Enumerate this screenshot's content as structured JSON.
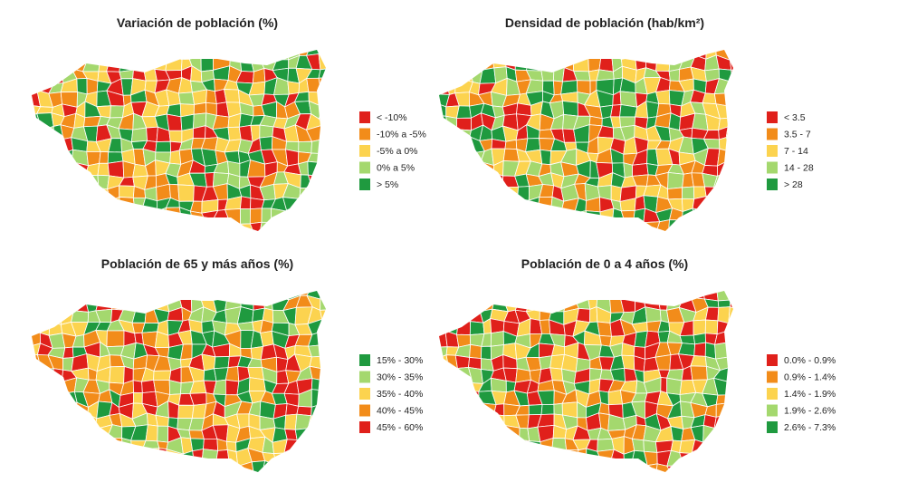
{
  "maps": [
    {
      "title": "Variación de población (%)",
      "legend": [
        {
          "label": "< -10%",
          "color": "#e0201b"
        },
        {
          "label": "-10% a -5%",
          "color": "#f28c1a"
        },
        {
          "label": "-5% a 0%",
          "color": "#fcd34f"
        },
        {
          "label": "0% a 5%",
          "color": "#a4d86e"
        },
        {
          "label": "> 5%",
          "color": "#1f9a3f"
        }
      ]
    },
    {
      "title": "Densidad de población (hab/km²)",
      "legend": [
        {
          "label": "< 3.5",
          "color": "#e0201b"
        },
        {
          "label": "3.5 - 7",
          "color": "#f28c1a"
        },
        {
          "label": "7 - 14",
          "color": "#fcd34f"
        },
        {
          "label": "14 - 28",
          "color": "#a4d86e"
        },
        {
          "label": "> 28",
          "color": "#1f9a3f"
        }
      ]
    },
    {
      "title": "Población de 65 y más años (%)",
      "legend": [
        {
          "label": "15% - 30%",
          "color": "#1f9a3f"
        },
        {
          "label": "30% - 35%",
          "color": "#a4d86e"
        },
        {
          "label": "35% - 40%",
          "color": "#fcd34f"
        },
        {
          "label": "40% - 45%",
          "color": "#f28c1a"
        },
        {
          "label": "45% - 60%",
          "color": "#e0201b"
        }
      ]
    },
    {
      "title": "Población de 0 a 4 años (%)",
      "legend": [
        {
          "label": "0.0% - 0.9%",
          "color": "#e0201b"
        },
        {
          "label": "0.9% - 1.4%",
          "color": "#f28c1a"
        },
        {
          "label": "1.4% - 1.9%",
          "color": "#fcd34f"
        },
        {
          "label": "1.9% - 2.6%",
          "color": "#a4d86e"
        },
        {
          "label": "2.6% - 7.3%",
          "color": "#1f9a3f"
        }
      ]
    }
  ]
}
